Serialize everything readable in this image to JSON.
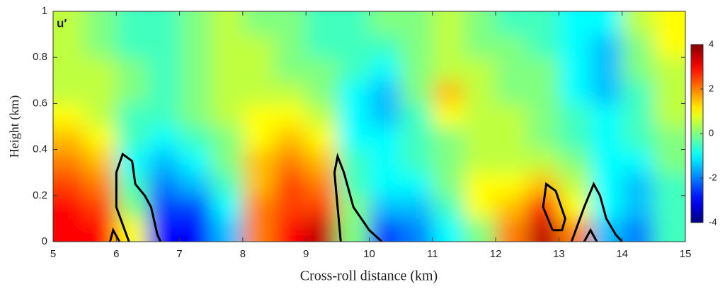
{
  "chart_data": {
    "type": "heatmap",
    "title": "u′",
    "xlabel": "Cross-roll distance (km)",
    "ylabel": "Height (km)",
    "x": [
      5.25,
      5.75,
      6.25,
      6.75,
      7.25,
      7.75,
      8.25,
      8.75,
      9.25,
      9.75,
      10.25,
      10.75,
      11.25,
      11.75,
      12.25,
      12.75,
      13.25,
      13.75,
      14.25,
      14.75
    ],
    "y": [
      0.05,
      0.15,
      0.25,
      0.35,
      0.45,
      0.55,
      0.65,
      0.75,
      0.85,
      0.95
    ],
    "values": [
      [
        3,
        3,
        1,
        -3,
        -3,
        -1.5,
        2,
        3,
        3.5,
        0,
        -2.5,
        -2,
        -1,
        0,
        2,
        3.5,
        2,
        -1.5,
        -2,
        -0.5
      ],
      [
        3,
        2.5,
        0,
        -2.5,
        -2.5,
        -1,
        2,
        2.5,
        2.5,
        0,
        -1.5,
        -1.5,
        -0.5,
        1,
        1.5,
        3,
        1,
        -1,
        -1.5,
        -0.5
      ],
      [
        2.5,
        2,
        -0.5,
        -2,
        -1.5,
        -0.5,
        1.5,
        2.5,
        2,
        -0.5,
        -1,
        -1,
        0,
        1,
        1,
        1.5,
        0.5,
        -1,
        -1.5,
        -0.5
      ],
      [
        2,
        1.5,
        -1,
        -1.5,
        -1,
        0,
        1.5,
        2,
        1.5,
        -0.5,
        -1,
        -0.5,
        0,
        0.5,
        0.5,
        0.5,
        0,
        -1,
        -1,
        0
      ],
      [
        1.5,
        1,
        -0.5,
        -1,
        -0.5,
        0,
        1,
        1.5,
        1,
        -1,
        -1,
        -0.5,
        0,
        0.5,
        0.5,
        0,
        -0.5,
        -1,
        -0.5,
        0
      ],
      [
        1,
        0.5,
        -0.5,
        -0.5,
        0,
        0.5,
        1,
        1,
        0.5,
        -1,
        -1.5,
        -0.5,
        1,
        0.5,
        0.5,
        0,
        -0.5,
        -1,
        -0.5,
        0.5
      ],
      [
        0.5,
        0.5,
        0,
        -0.5,
        0,
        0.5,
        0.5,
        0.5,
        0,
        -1,
        -1.5,
        0,
        1.5,
        0.5,
        0,
        0,
        -1,
        -1.5,
        -0.5,
        0.5
      ],
      [
        0.5,
        0.5,
        0,
        -0.5,
        0,
        0.5,
        0.5,
        0,
        0,
        -0.5,
        -1,
        0,
        0.5,
        0.5,
        0,
        0,
        -1,
        -1.5,
        0,
        0.5
      ],
      [
        0.5,
        0,
        -0.5,
        -0.5,
        0,
        0.5,
        0.5,
        0,
        -0.5,
        -0.5,
        -0.5,
        0,
        0.5,
        0,
        0,
        -0.5,
        -1,
        -1.5,
        0,
        1
      ],
      [
        0.5,
        0,
        -0.5,
        -0.5,
        0,
        0.5,
        0,
        0,
        -0.5,
        -0.5,
        0,
        0,
        0.5,
        0,
        -0.5,
        -0.5,
        -1,
        -1,
        0.5,
        1
      ]
    ],
    "contours": [
      {
        "x": [
          6.2,
          6.0,
          6.0,
          6.1,
          6.25,
          6.3,
          6.45,
          6.55,
          6.65,
          6.7
        ],
        "y": [
          0,
          0.15,
          0.3,
          0.38,
          0.35,
          0.25,
          0.2,
          0.15,
          0.03,
          0
        ]
      },
      {
        "x": [
          5.9,
          5.95,
          6.05
        ],
        "y": [
          0,
          0.05,
          0
        ]
      },
      {
        "x": [
          9.55,
          9.5,
          9.45,
          9.5,
          9.6,
          9.75,
          10,
          10.2
        ],
        "y": [
          0,
          0.15,
          0.3,
          0.37,
          0.3,
          0.15,
          0.05,
          0
        ]
      },
      {
        "x": [
          12.9,
          12.75,
          12.8,
          12.95,
          13.1,
          13.05,
          12.9
        ],
        "y": [
          0.05,
          0.15,
          0.25,
          0.22,
          0.1,
          0.05,
          0.05
        ]
      },
      {
        "x": [
          13.2,
          13.4,
          13.55,
          13.65,
          13.75,
          13.9,
          14
        ],
        "y": [
          0,
          0.15,
          0.25,
          0.2,
          0.1,
          0.03,
          0
        ]
      },
      {
        "x": [
          13.4,
          13.5,
          13.6
        ],
        "y": [
          0,
          0.05,
          0
        ]
      }
    ],
    "contour_color": "#000000",
    "colormap": "jet",
    "xlim": [
      5,
      15
    ],
    "xticks": [
      5,
      6,
      7,
      8,
      9,
      10,
      11,
      12,
      13,
      14,
      15
    ],
    "ylim": [
      0,
      1
    ],
    "yticks": [
      0,
      0.2,
      0.4,
      0.6,
      0.8,
      1
    ],
    "clim": [
      -4,
      4
    ],
    "cticks": [
      -4,
      -2,
      0,
      2,
      4
    ]
  }
}
